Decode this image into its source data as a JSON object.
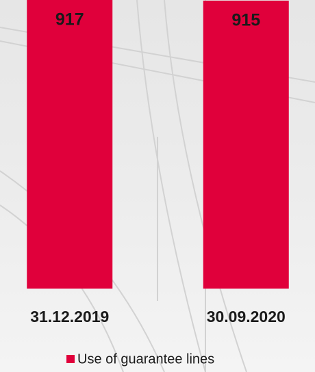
{
  "chart_data": {
    "type": "bar",
    "categories": [
      "31.12.2019",
      "30.09.2020"
    ],
    "series": [
      {
        "name": "Use of guarantee lines",
        "color": "#e0003b",
        "values": [
          917,
          915
        ]
      }
    ],
    "legend": "bottom"
  }
}
